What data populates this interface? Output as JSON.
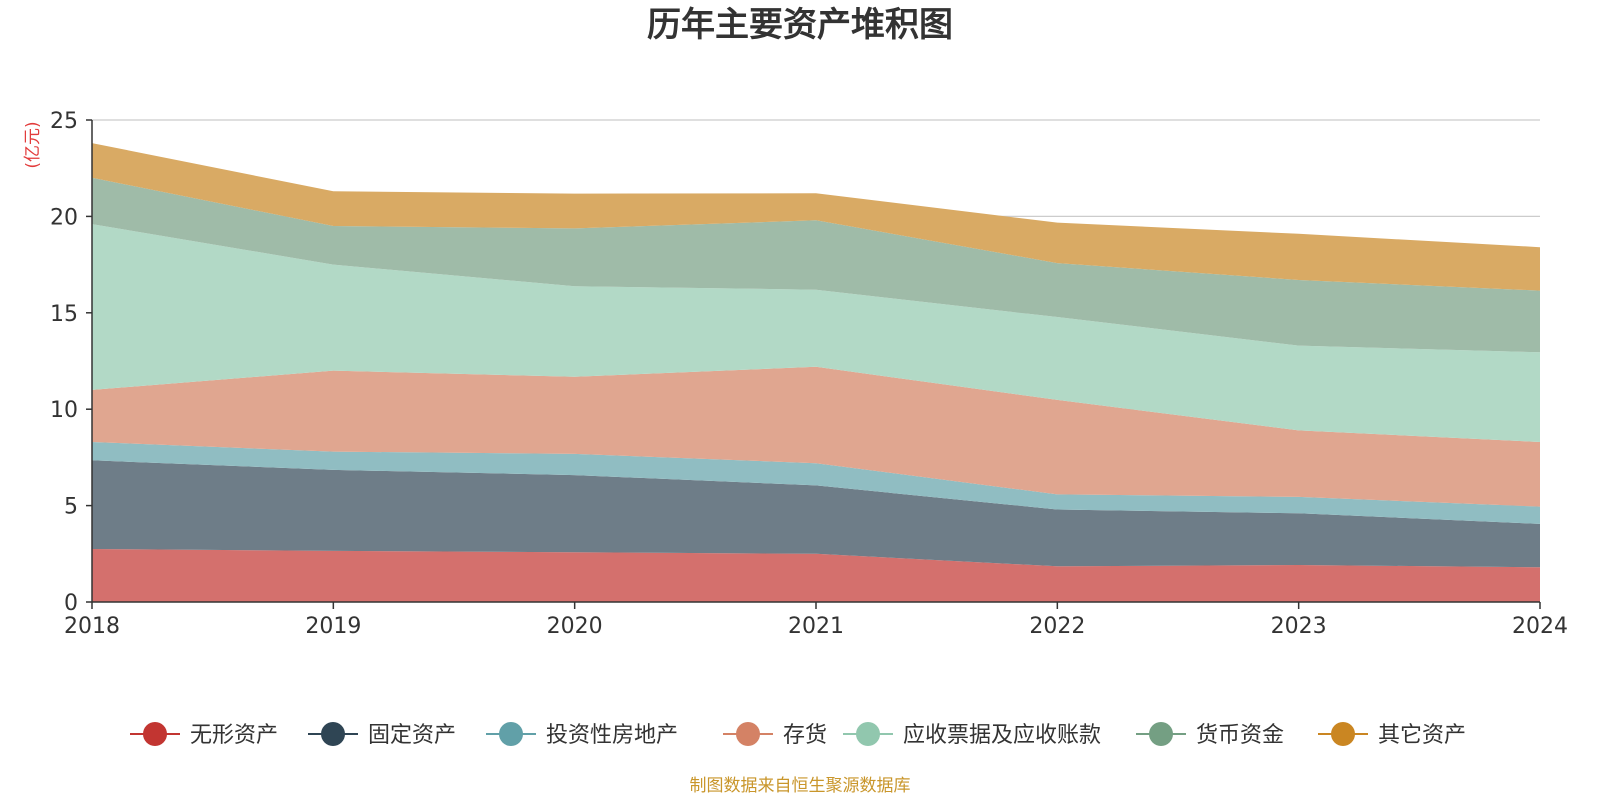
{
  "chart_data": {
    "type": "area",
    "stacked": true,
    "title": "历年主要资产堆积图",
    "unit_label": "(亿元)",
    "x": [
      "2018",
      "2019",
      "2020",
      "2021",
      "2022",
      "2023",
      "2024"
    ],
    "ylim": [
      0,
      25
    ],
    "yticks": [
      "0",
      "5",
      "10",
      "15",
      "20",
      "25"
    ],
    "grid": true,
    "legend_position": "bottom",
    "series": [
      {
        "name": "无形资产",
        "color": "#c23531",
        "fill": "#d4706d",
        "values": [
          2.75,
          2.65,
          2.58,
          2.5,
          1.85,
          1.92,
          1.8
        ]
      },
      {
        "name": "固定资产",
        "color": "#2f4554",
        "fill": "#6e7d88",
        "values": [
          4.6,
          4.2,
          4.0,
          3.55,
          2.95,
          2.68,
          2.25
        ]
      },
      {
        "name": "投资性房地产",
        "color": "#61a0a8",
        "fill": "#90bdc2",
        "values": [
          0.95,
          0.95,
          1.1,
          1.15,
          0.78,
          0.85,
          0.9
        ]
      },
      {
        "name": "存货",
        "color": "#d48265",
        "fill": "#e0a690",
        "values": [
          2.7,
          4.2,
          4.0,
          5.0,
          4.9,
          3.45,
          3.35
        ]
      },
      {
        "name": "应收票据及应收账款",
        "color": "#91c7ae",
        "fill": "#b2d9c6",
        "values": [
          8.6,
          5.5,
          4.7,
          4.0,
          4.3,
          4.4,
          4.65
        ]
      },
      {
        "name": "货币资金",
        "color": "#749f83",
        "fill": "#9fbba8",
        "values": [
          2.4,
          2.0,
          3.0,
          3.6,
          2.8,
          3.4,
          3.2
        ]
      },
      {
        "name": "其它资产",
        "color": "#ca8622",
        "fill": "#d9aa64",
        "values": [
          1.8,
          1.8,
          1.8,
          1.4,
          2.1,
          2.4,
          2.25
        ]
      }
    ]
  },
  "source_note": "制图数据来自恒生聚源数据库"
}
